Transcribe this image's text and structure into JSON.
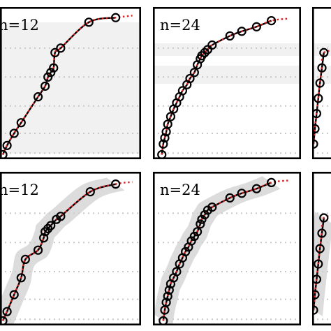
{
  "chart_data": [
    {
      "type": "line",
      "panel": "top-left",
      "annotation": "n=12",
      "style": "horizontal-bands",
      "x": [
        0.02,
        0.05,
        0.1,
        0.15,
        0.27,
        0.32,
        0.34,
        0.36,
        0.38,
        0.39,
        0.43,
        0.63,
        0.82
      ],
      "y": [
        0.03,
        0.09,
        0.17,
        0.24,
        0.41,
        0.48,
        0.54,
        0.57,
        0.6,
        0.7,
        0.73,
        0.9,
        0.93
      ]
    },
    {
      "type": "line",
      "panel": "top-middle",
      "annotation": "n=24",
      "style": "horizontal-bands",
      "x": [
        0.06,
        0.07,
        0.08,
        0.09,
        0.1,
        0.12,
        0.14,
        0.16,
        0.18,
        0.2,
        0.23,
        0.25,
        0.28,
        0.3,
        0.32,
        0.33,
        0.35,
        0.37,
        0.4,
        0.52,
        0.6,
        0.7,
        0.8
      ],
      "y": [
        0.03,
        0.1,
        0.14,
        0.18,
        0.23,
        0.28,
        0.33,
        0.37,
        0.41,
        0.45,
        0.49,
        0.53,
        0.57,
        0.62,
        0.66,
        0.68,
        0.7,
        0.72,
        0.75,
        0.81,
        0.84,
        0.87,
        0.91
      ]
    },
    {
      "type": "line",
      "panel": "top-right",
      "annotation": "",
      "style": "horizontal-bands",
      "x": [
        0.05,
        0.1,
        0.16,
        0.22,
        0.28,
        0.35,
        0.42
      ],
      "y": [
        0.1,
        0.2,
        0.3,
        0.4,
        0.5,
        0.6,
        0.7
      ]
    },
    {
      "type": "line",
      "panel": "bottom-left",
      "annotation": "n=12",
      "style": "ribbon",
      "x": [
        0.02,
        0.05,
        0.1,
        0.15,
        0.18,
        0.27,
        0.31,
        0.32,
        0.34,
        0.36,
        0.4,
        0.43,
        0.64,
        0.82
      ],
      "y": [
        0.03,
        0.09,
        0.2,
        0.31,
        0.43,
        0.49,
        0.57,
        0.61,
        0.63,
        0.65,
        0.69,
        0.71,
        0.87,
        0.92
      ]
    },
    {
      "type": "line",
      "panel": "bottom-middle",
      "annotation": "n=24",
      "style": "ribbon",
      "x": [
        0.07,
        0.08,
        0.09,
        0.1,
        0.11,
        0.12,
        0.14,
        0.16,
        0.18,
        0.2,
        0.22,
        0.24,
        0.26,
        0.28,
        0.3,
        0.32,
        0.33,
        0.35,
        0.37,
        0.4,
        0.52,
        0.6,
        0.7,
        0.8
      ],
      "y": [
        0.03,
        0.1,
        0.15,
        0.19,
        0.23,
        0.27,
        0.31,
        0.35,
        0.4,
        0.44,
        0.48,
        0.51,
        0.55,
        0.58,
        0.61,
        0.66,
        0.69,
        0.72,
        0.75,
        0.77,
        0.83,
        0.86,
        0.89,
        0.93
      ]
    },
    {
      "type": "line",
      "panel": "bottom-right",
      "annotation": "",
      "style": "ribbon",
      "x": [
        0.05,
        0.1,
        0.16,
        0.22,
        0.28,
        0.35,
        0.42
      ],
      "y": [
        0.1,
        0.2,
        0.3,
        0.4,
        0.5,
        0.6,
        0.7
      ]
    }
  ],
  "colors": {
    "fit_line": "#000000",
    "reference_line": "#e11b1b",
    "uncertainty": "#d0d0d0",
    "grid": "#c8c8c8"
  }
}
